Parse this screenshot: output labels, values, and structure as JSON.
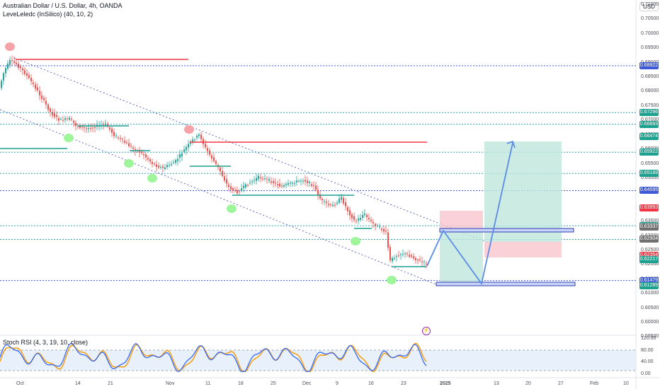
{
  "header": {
    "symbol_line": "Australian Dollar / U.S. Dollar, 4h, OANDA",
    "indicator_line": "LeveLeledc (InSilico) (40, 10, 2)"
  },
  "rsi": {
    "label": "Stoch RSI (4, 3, 19, 10, close)"
  },
  "currency_badge": "USD",
  "colors": {
    "up_candle": "#26a69a",
    "down_candle": "#ef5350",
    "support_line": "#26a69a",
    "resistance_line": "#f23645",
    "level_dotted": "#2aa3b8",
    "channel_dotted": "#5d66c0",
    "rsi_k": "#2962ff",
    "rsi_d": "#f7a21b",
    "projection": "#5b8be8"
  },
  "price_axis_ticks": [
    "0.71000",
    "0.70500",
    "0.70000",
    "0.69500",
    "0.69000",
    "0.68500",
    "0.68000",
    "0.67500",
    "0.67000",
    "0.66500",
    "0.66000",
    "0.65500",
    "0.65000",
    "0.64500",
    "0.64000",
    "0.63500",
    "0.63000",
    "0.62500",
    "0.62000",
    "0.61500",
    "0.61000",
    "0.60500",
    "0.60000",
    "0.59500"
  ],
  "price_badges": [
    {
      "value": "0.68922",
      "color": "#3d5bd9"
    },
    {
      "value": "0.67296",
      "color": "#1ba190"
    },
    {
      "value": "0.66893",
      "color": "#1ba190"
    },
    {
      "value": "0.66474",
      "color": "#1ba190"
    },
    {
      "value": "0.65922",
      "color": "#1ba190"
    },
    {
      "value": "0.65189",
      "color": "#1ba190"
    },
    {
      "value": "0.64595",
      "color": "#3d5bd9"
    },
    {
      "value": "0.63993",
      "color": "#f23645"
    },
    {
      "value": "0.63376",
      "color": "#1ba190"
    },
    {
      "value": "0.63337",
      "color": "#707070"
    },
    {
      "value": "0.62904",
      "color": "#707070"
    },
    {
      "value": "0.62354",
      "color": "#f23645"
    },
    {
      "value": "0.62217",
      "color": "#1ba190"
    },
    {
      "value": "0.61479",
      "color": "#3d5bd9"
    },
    {
      "value": "0.61289",
      "color": "#1ba190"
    }
  ],
  "rsi_axis_ticks": [
    "120.00",
    "80.00",
    "40.00",
    "0.00"
  ],
  "time_axis": [
    "Oct",
    "14",
    "21",
    "Nov",
    "11",
    "18",
    "25",
    "Dec",
    "9",
    "16",
    "23",
    "2025",
    "13",
    "20",
    "27",
    "Feb",
    "10"
  ]
}
